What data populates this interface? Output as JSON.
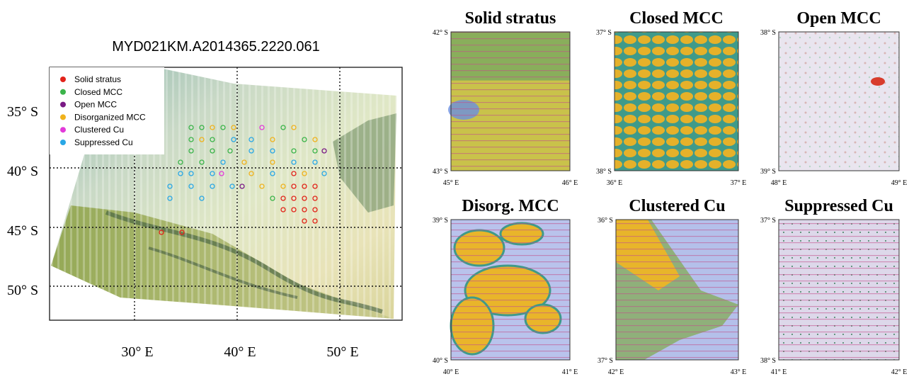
{
  "map": {
    "title": "MYD021KM.A2014365.2220.061",
    "legend": [
      "Solid stratus",
      "Closed MCC",
      "Open MCC",
      "Disorganized MCC",
      "Clustered Cu",
      "Suppressed Cu"
    ],
    "lat_labels": [
      "35° S",
      "40° S",
      "45° S",
      "50° S"
    ],
    "lon_labels": [
      "30° E",
      "40° E",
      "50° E"
    ]
  },
  "panels": [
    {
      "title": "Solid stratus",
      "lat_top": "42° S",
      "lat_bottom": "43° S",
      "lon_left": "45° E",
      "lon_right": "46° E"
    },
    {
      "title": "Closed MCC",
      "lat_top": "37° S",
      "lat_bottom": "38° S",
      "lon_left": "36° E",
      "lon_right": "37° E"
    },
    {
      "title": "Open MCC",
      "lat_top": "38° S",
      "lat_bottom": "39° S",
      "lon_left": "48° E",
      "lon_right": "49° E"
    },
    {
      "title": "Disorg. MCC",
      "lat_top": "39° S",
      "lat_bottom": "40° S",
      "lon_left": "40° E",
      "lon_right": "41° E"
    },
    {
      "title": "Clustered Cu",
      "lat_top": "36° S",
      "lat_bottom": "37° S",
      "lon_left": "42° E",
      "lon_right": "43° E"
    },
    {
      "title": "Suppressed Cu",
      "lat_top": "37° S",
      "lat_bottom": "38° S",
      "lon_left": "41° E",
      "lon_right": "42° E"
    }
  ]
}
